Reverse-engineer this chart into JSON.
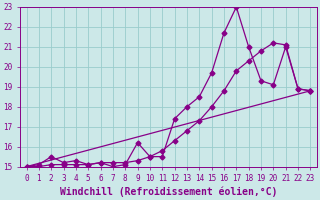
{
  "xlabel": "Windchill (Refroidissement éolien,°C)",
  "bg_color": "#cce8e8",
  "grid_color": "#99cccc",
  "line_color": "#880088",
  "marker": "D",
  "markersize": 2.5,
  "linewidth": 0.9,
  "xlim": [
    -0.5,
    23.5
  ],
  "ylim": [
    15,
    23
  ],
  "xticks": [
    0,
    1,
    2,
    3,
    4,
    5,
    6,
    7,
    8,
    9,
    10,
    11,
    12,
    13,
    14,
    15,
    16,
    17,
    18,
    19,
    20,
    21,
    22,
    23
  ],
  "yticks": [
    15,
    16,
    17,
    18,
    19,
    20,
    21,
    22,
    23
  ],
  "series1_x": [
    0,
    1,
    2,
    3,
    4,
    5,
    6,
    7,
    8,
    9,
    10,
    11,
    12,
    13,
    14,
    15,
    16,
    17,
    18,
    19,
    20,
    21,
    22,
    23
  ],
  "series1_y": [
    15.0,
    15.1,
    15.5,
    15.2,
    15.3,
    15.1,
    15.2,
    15.0,
    15.1,
    16.2,
    15.5,
    15.5,
    17.4,
    18.0,
    18.5,
    19.7,
    21.7,
    23.0,
    21.0,
    19.3,
    19.1,
    21.0,
    18.9,
    18.8
  ],
  "series2_x": [
    0,
    1,
    2,
    3,
    4,
    5,
    6,
    7,
    8,
    9,
    10,
    11,
    12,
    13,
    14,
    15,
    16,
    17,
    18,
    19,
    20,
    21,
    22,
    23
  ],
  "series2_y": [
    15.0,
    15.0,
    15.1,
    15.1,
    15.1,
    15.1,
    15.2,
    15.2,
    15.2,
    15.3,
    15.5,
    15.8,
    16.3,
    16.8,
    17.3,
    18.0,
    18.8,
    19.8,
    20.3,
    20.8,
    21.2,
    21.1,
    18.9,
    18.8
  ],
  "series3_x": [
    0,
    23
  ],
  "series3_y": [
    15.0,
    18.8
  ],
  "tick_fontsize": 5.5,
  "label_fontsize": 7.0
}
